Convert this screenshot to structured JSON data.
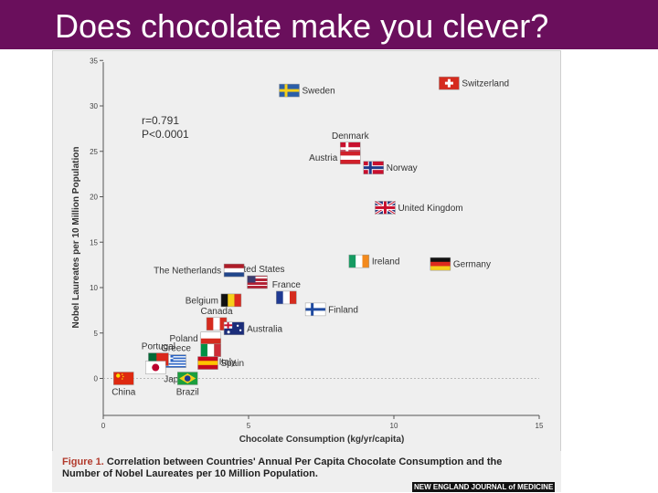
{
  "slide": {
    "title": "Does chocolate make you clever?"
  },
  "figure": {
    "caption_label": "Figure 1.",
    "caption_text": "Correlation between Countries' Annual Per Capita Chocolate Consumption and the Number of Nobel Laureates per 10 Million Population.",
    "journal_logo": "NEW ENGLAND JOURNAL of MEDICINE"
  },
  "chart_data": {
    "type": "scatter",
    "xlabel": "Chocolate Consumption (kg/yr/capita)",
    "ylabel": "Nobel Laureates per 10 Million Population",
    "xlim": [
      0,
      15
    ],
    "ylim": [
      -4,
      35
    ],
    "xticks": [
      0,
      5,
      10,
      15
    ],
    "yticks": [
      0,
      5,
      10,
      15,
      20,
      25,
      30,
      35
    ],
    "grid": false,
    "annotations": {
      "r": "r=0.791",
      "p": "P<0.0001"
    },
    "points": [
      {
        "country": "Switzerland",
        "x": 11.9,
        "y": 32.5,
        "flag": [
          "#d52b1e"
        ],
        "flag_style": "cross-white"
      },
      {
        "country": "Sweden",
        "x": 6.4,
        "y": 31.7,
        "flag": [
          "#2b5ea8",
          "#f6cf1a"
        ],
        "flag_style": "nordic"
      },
      {
        "country": "Denmark",
        "x": 8.5,
        "y": 25.3,
        "flag": [
          "#c8102e",
          "#ffffff"
        ],
        "flag_style": "nordic"
      },
      {
        "country": "Austria",
        "x": 8.5,
        "y": 24.3,
        "flag": [
          "#d0202a",
          "#ffffff",
          "#d0202a"
        ],
        "flag_style": "hstripes"
      },
      {
        "country": "Norway",
        "x": 9.3,
        "y": 23.2,
        "flag": [
          "#c8102e",
          "#ffffff",
          "#1f3a8a"
        ],
        "flag_style": "nordic-border"
      },
      {
        "country": "United Kingdom",
        "x": 9.7,
        "y": 18.8,
        "flag": [
          "#27357a",
          "#ffffff",
          "#c8102e"
        ],
        "flag_style": "uk"
      },
      {
        "country": "Ireland",
        "x": 8.8,
        "y": 12.9,
        "flag": [
          "#169b62",
          "#ffffff",
          "#f38a1d"
        ],
        "flag_style": "vstripes"
      },
      {
        "country": "Germany",
        "x": 11.6,
        "y": 12.6,
        "flag": [
          "#111111",
          "#dd2a1e",
          "#f6cf1a"
        ],
        "flag_style": "hstripes"
      },
      {
        "country": "United States",
        "x": 5.3,
        "y": 10.6,
        "flag": [
          "#b22234",
          "#ffffff",
          "#3c3b6e"
        ],
        "flag_style": "us"
      },
      {
        "country": "The Netherlands",
        "x": 4.5,
        "y": 11.9,
        "flag": [
          "#ae1c28",
          "#ffffff",
          "#21468b"
        ],
        "flag_style": "hstripes"
      },
      {
        "country": "France",
        "x": 6.3,
        "y": 8.9,
        "flag": [
          "#1f3a93",
          "#ffffff",
          "#d52b1e"
        ],
        "flag_style": "vstripes"
      },
      {
        "country": "Finland",
        "x": 7.3,
        "y": 7.6,
        "flag": [
          "#ffffff",
          "#1f4aa0"
        ],
        "flag_style": "nordic"
      },
      {
        "country": "Belgium",
        "x": 4.4,
        "y": 8.6,
        "flag": [
          "#111111",
          "#f6cf1a",
          "#dd2a1e"
        ],
        "flag_style": "vstripes"
      },
      {
        "country": "Canada",
        "x": 3.9,
        "y": 6.0,
        "flag": [
          "#d52b1e",
          "#ffffff",
          "#d52b1e"
        ],
        "flag_style": "vstripes"
      },
      {
        "country": "Australia",
        "x": 4.5,
        "y": 5.5,
        "flag": [
          "#1b2d7a",
          "#ffffff",
          "#c8102e"
        ],
        "flag_style": "aus"
      },
      {
        "country": "Poland",
        "x": 3.7,
        "y": 4.4,
        "flag": [
          "#ffffff",
          "#d52b1e"
        ],
        "flag_style": "hstripes"
      },
      {
        "country": "Greece",
        "x": 2.5,
        "y": 1.9,
        "flag": [
          "#2a63c4",
          "#ffffff"
        ],
        "flag_style": "greek"
      },
      {
        "country": "Portugal",
        "x": 1.9,
        "y": 2.1,
        "flag": [
          "#046a38",
          "#da291c"
        ],
        "flag_style": "vsplit"
      },
      {
        "country": "Italy",
        "x": 3.7,
        "y": 3.1,
        "flag": [
          "#009246",
          "#ffffff",
          "#ce2b37"
        ],
        "flag_style": "vstripes"
      },
      {
        "country": "Spain",
        "x": 3.6,
        "y": 1.7,
        "flag": [
          "#c60b1e",
          "#ffc400",
          "#c60b1e"
        ],
        "flag_style": "hstripes"
      },
      {
        "country": "Japan",
        "x": 1.8,
        "y": 1.2,
        "flag": [
          "#ffffff",
          "#bc002d"
        ],
        "flag_style": "circle"
      },
      {
        "country": "Brazil",
        "x": 2.9,
        "y": 0.0,
        "flag": [
          "#1b9e3e",
          "#f6cf1a",
          "#1f3a93"
        ],
        "flag_style": "diamond"
      },
      {
        "country": "China",
        "x": 0.7,
        "y": 0.0,
        "flag": [
          "#de2910",
          "#ffde00"
        ],
        "flag_style": "star"
      }
    ]
  }
}
